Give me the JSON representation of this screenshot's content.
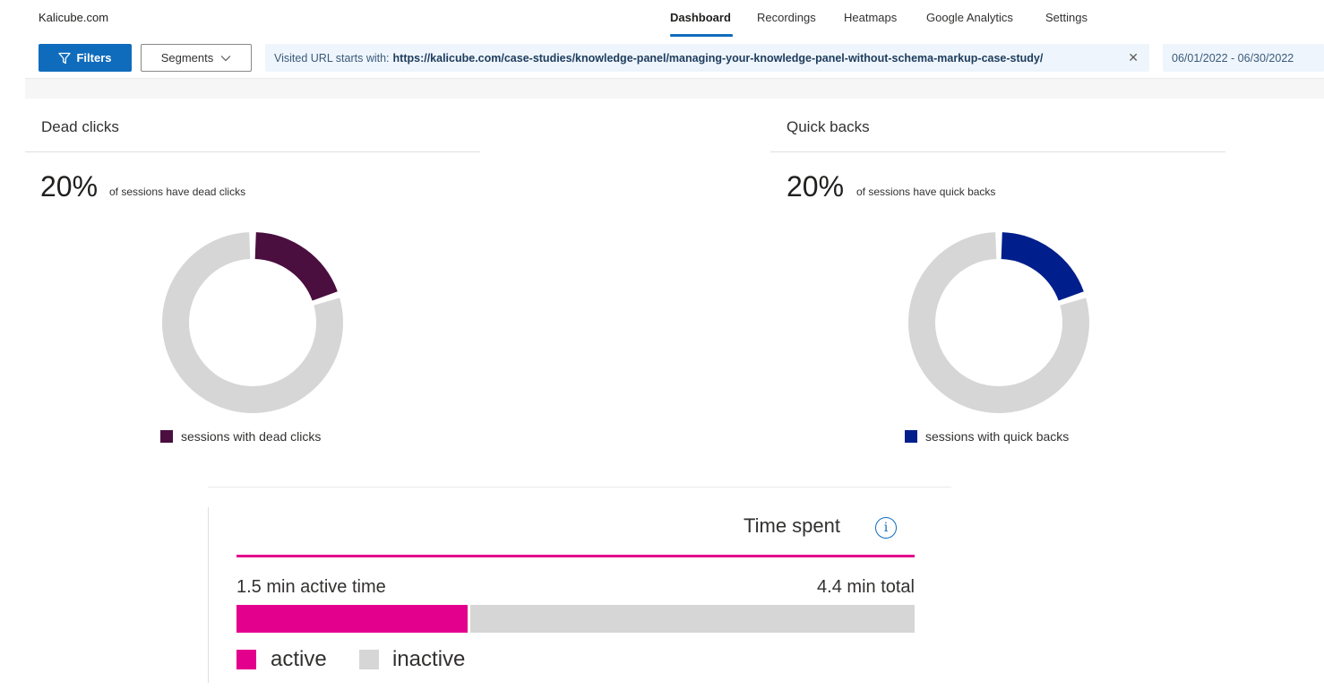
{
  "header": {
    "site_name": "Kalicube.com",
    "tabs": [
      {
        "label": "Dashboard",
        "active": true
      },
      {
        "label": "Recordings",
        "active": false
      },
      {
        "label": "Heatmaps",
        "active": false
      },
      {
        "label": "Google Analytics",
        "active": false
      },
      {
        "label": "Settings",
        "active": false
      }
    ]
  },
  "toolbar": {
    "filters_label": "Filters",
    "segments_label": "Segments",
    "url_filter_prefix": "Visited URL starts with:",
    "url_filter_value": "https://kalicube.com/case-studies/knowledge-panel/managing-your-knowledge-panel-without-schema-markup-case-study/",
    "date_range": "06/01/2022 - 06/30/2022"
  },
  "dead_clicks": {
    "title": "Dead clicks",
    "percent_label": "20%",
    "caption": "of sessions have dead clicks",
    "legend": "sessions with dead clicks",
    "color": "#4a0e3f"
  },
  "quick_backs": {
    "title": "Quick backs",
    "percent_label": "20%",
    "caption": "of sessions have quick backs",
    "legend": "sessions with quick backs",
    "color": "#001e8c"
  },
  "time_spent": {
    "title": "Time spent",
    "active_label": "1.5 min active time",
    "total_label": "4.4 min total",
    "active_minutes": 1.5,
    "total_minutes": 4.4,
    "legend_active": "active",
    "legend_inactive": "inactive",
    "active_color": "#e3008c",
    "inactive_color": "#d6d6d6"
  },
  "chart_data": [
    {
      "type": "pie",
      "categories": [
        "sessions with dead clicks",
        ""
      ],
      "values": [
        20,
        80
      ],
      "legend": "bottom-left"
    },
    {
      "type": "pie",
      "categories": [
        "sessions with quick backs",
        ""
      ],
      "values": [
        20,
        80
      ],
      "legend": "bottom-left"
    },
    {
      "type": "bar",
      "categories": [
        "active",
        "inactive"
      ],
      "values": [
        1.5,
        2.9
      ],
      "title": "Time spent",
      "legend": "bottom-left"
    }
  ]
}
